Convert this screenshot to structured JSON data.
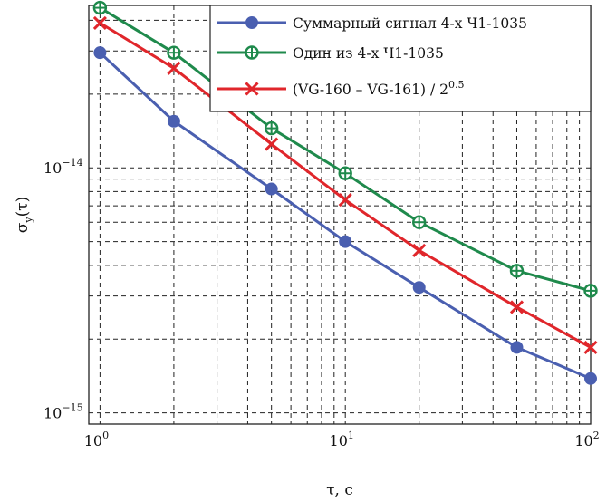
{
  "chart_data": {
    "type": "line",
    "xscale": "log",
    "yscale": "log",
    "xlim": [
      0.9,
      100
    ],
    "ylim": [
      9e-16,
      4.6e-14
    ],
    "xlabel": "τ, с",
    "ylabel_main": "σ",
    "ylabel_sub": "y",
    "ylabel_arg": "(τ)",
    "grid": true,
    "legend_position": "top-right",
    "x_ticks": [
      {
        "value": 1,
        "base": "10",
        "exp": "0"
      },
      {
        "value": 10,
        "base": "10",
        "exp": "1"
      },
      {
        "value": 100,
        "base": "10",
        "exp": "2"
      }
    ],
    "y_ticks": [
      {
        "value": 1e-15,
        "base": "10",
        "exp": "−15"
      },
      {
        "value": 1e-14,
        "base": "10",
        "exp": "−14"
      }
    ],
    "series": [
      {
        "name": "Суммарный сигнал 4-х Ч1-1035",
        "color": "#4a5fb0",
        "marker": "filled-circle",
        "x": [
          1,
          2,
          5,
          10,
          20,
          50,
          100
        ],
        "y": [
          2.95e-14,
          1.55e-14,
          8.2e-15,
          5e-15,
          3.25e-15,
          1.85e-15,
          1.38e-15
        ]
      },
      {
        "name": "Один из 4-х Ч1-1035",
        "color": "#1f8a4c",
        "marker": "open-circle-plus",
        "x": [
          1,
          2,
          5,
          10,
          20,
          50,
          100
        ],
        "y": [
          4.5e-14,
          2.95e-14,
          1.45e-14,
          9.5e-15,
          6e-15,
          3.8e-15,
          3.15e-15
        ]
      },
      {
        "name_main": "(VG-160 – VG-161) / 2",
        "name_sup": "0.5",
        "color": "#e0262b",
        "marker": "x",
        "x": [
          1,
          2,
          5,
          10,
          20,
          50,
          100
        ],
        "y": [
          3.9e-14,
          2.55e-14,
          1.25e-14,
          7.4e-15,
          4.6e-15,
          2.7e-15,
          1.85e-15
        ]
      }
    ]
  }
}
